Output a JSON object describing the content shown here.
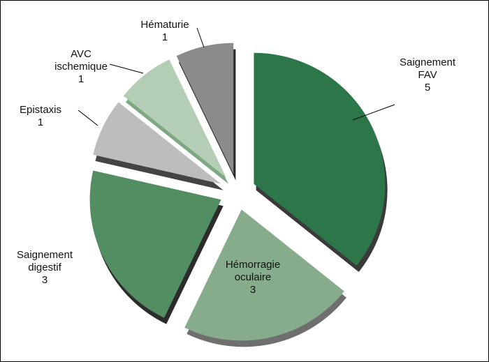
{
  "chart_data": {
    "type": "pie",
    "categories": [
      "Saignement FAV",
      "Hémorragie oculaire",
      "Saignement digestif",
      "Epistaxis",
      "AVC ischemique",
      "Hématurie"
    ],
    "values": [
      5,
      3,
      3,
      1,
      1,
      1
    ],
    "colors": [
      "#2d7649",
      "#86ac8c",
      "#538e63",
      "#bdbdbd",
      "#b3ceb4",
      "#8b8b8b"
    ],
    "depth_colors": [
      "#3a3a3a",
      "#6f6f6f",
      "#2c2c2c",
      "#444444",
      "#7ea884",
      "#2a2a2a"
    ]
  }
}
